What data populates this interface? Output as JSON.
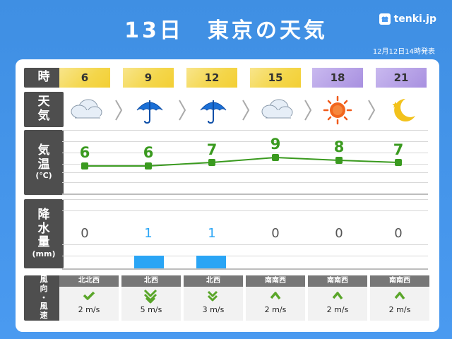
{
  "header": {
    "title": "13日　東京の天気",
    "logo_text": "tenki.jp",
    "issued": "12月12日14時発表"
  },
  "labels": {
    "time": "時",
    "weather_1": "天",
    "weather_2": "気",
    "temp_1": "気",
    "temp_2": "温",
    "temp_unit": "(℃)",
    "precip_1": "降",
    "precip_2": "水",
    "precip_3": "量",
    "precip_unit": "(mm)",
    "wind_1": "風",
    "wind_2": "向",
    "wind_3": "・",
    "wind_4": "風",
    "wind_5": "速"
  },
  "hours": [
    "6",
    "9",
    "12",
    "15",
    "18",
    "21"
  ],
  "weather_icons": [
    "cloud-icon",
    "umbrella-icon",
    "umbrella-icon",
    "cloud-icon",
    "sun-icon",
    "moon-icon"
  ],
  "temperatures": [
    "6",
    "6",
    "7",
    "9",
    "8",
    "7"
  ],
  "precipitation": [
    "0",
    "1",
    "1",
    "0",
    "0",
    "0"
  ],
  "wind_dirs": [
    "北北西",
    "北西",
    "北西",
    "南南西",
    "南南西",
    "南南西"
  ],
  "wind_speeds": [
    "2 m/s",
    "5 m/s",
    "3 m/s",
    "2 m/s",
    "2 m/s",
    "2 m/s"
  ],
  "colors": {
    "background": "#4a9af0",
    "day_hour": "#f4d64a",
    "night_hour": "#a890e0",
    "temp_line": "#3a9a1f",
    "rain_bar": "#2aa5f5",
    "rain_text": "#2aa5f5",
    "zero_text": "#555555"
  }
}
